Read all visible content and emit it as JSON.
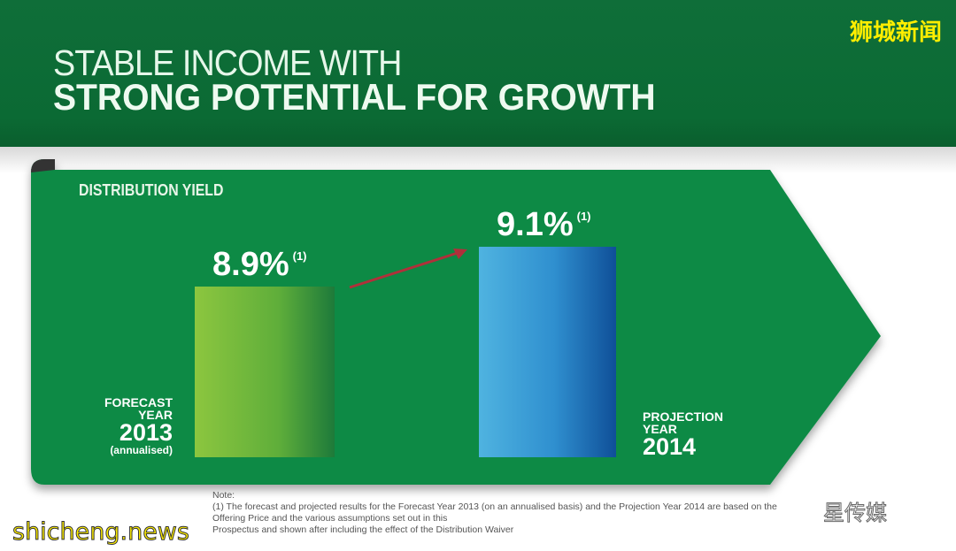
{
  "header": {
    "line1": "STABLE INCOME WITH",
    "line2": "STRONG POTENTIAL FOR GROWTH"
  },
  "watermarks": {
    "top_right": "狮城新闻",
    "bottom_left": "shicheng.news",
    "bottom_right": "星传媒"
  },
  "chart_data": {
    "type": "bar",
    "title": "DISTRIBUTION YIELD",
    "categories": [
      "FORECAST YEAR 2013 (annualised)",
      "PROJECTION YEAR 2014"
    ],
    "values": [
      8.9,
      9.1
    ],
    "value_labels": [
      "8.9%",
      "9.1%"
    ],
    "footnote_marker": "(1)",
    "ylim": [
      8.04,
      9.2
    ],
    "series_colors": [
      "#7dc242",
      "#3aa0d8"
    ],
    "xlabel": "",
    "ylabel": "",
    "category_labels": [
      {
        "line1": "FORECAST",
        "line2": "YEAR",
        "line3": "2013",
        "line4": "(annualised)"
      },
      {
        "line1": "PROJECTION",
        "line2": "YEAR",
        "line3": "2014"
      }
    ]
  },
  "notes": {
    "heading": "Note:",
    "item1": "(1)  The forecast and projected results for the Forecast Year 2013 (on an annualised basis) and the Projection Year 2014 are based on the Offering Price and the various assumptions set out in this",
    "item1_cont": "Prospectus and shown after including the effect of the Distribution Waiver"
  }
}
